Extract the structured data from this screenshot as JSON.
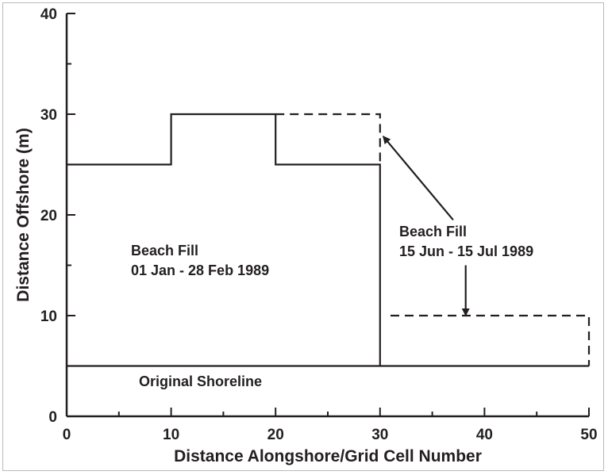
{
  "chart_data": {
    "type": "line",
    "title": "",
    "xlabel": "Distance Alongshore/Grid Cell Number",
    "ylabel": "Distance Offshore (m)",
    "xlim": [
      0,
      50
    ],
    "ylim": [
      0,
      40
    ],
    "x_ticks": [
      0,
      10,
      20,
      30,
      40,
      50
    ],
    "x_ticks_labels": [
      "0",
      "10",
      "20",
      "30",
      "40",
      "50"
    ],
    "y_ticks": [
      0,
      10,
      20,
      30,
      40
    ],
    "y_ticks_labels": [
      "0",
      "10",
      "20",
      "30",
      "40"
    ],
    "grid": false,
    "series": [
      {
        "style": "solid",
        "x": [
          0,
          10,
          10,
          20,
          20,
          30,
          30
        ],
        "y": [
          25,
          25,
          30,
          30,
          25,
          25,
          5
        ]
      },
      {
        "style": "dashed",
        "x": [
          20,
          30,
          30
        ],
        "y": [
          30,
          30,
          25
        ]
      },
      {
        "style": "dashed",
        "x": [
          31,
          50,
          50
        ],
        "y": [
          10,
          10,
          5
        ]
      },
      {
        "style": "solid",
        "x": [
          0,
          50
        ],
        "y": [
          5,
          5
        ]
      }
    ],
    "annotations": [
      {
        "id": "fill1",
        "lines": [
          "Beach Fill",
          "01 Jan - 28 Feb 1989"
        ]
      },
      {
        "id": "fill2",
        "lines": [
          "Beach Fill",
          "15 Jun - 15 Jul 1989"
        ]
      },
      {
        "id": "shore",
        "lines": [
          "Original Shoreline"
        ]
      }
    ],
    "arrows": [
      {
        "from": [
          37,
          19.5
        ],
        "to": [
          30.3,
          27.8
        ]
      },
      {
        "from": [
          38.2,
          15
        ],
        "to": [
          38.2,
          10
        ]
      }
    ]
  },
  "colors": {
    "ink": "#231f20",
    "frame": "#b9b9b9",
    "background": "#ffffff"
  }
}
